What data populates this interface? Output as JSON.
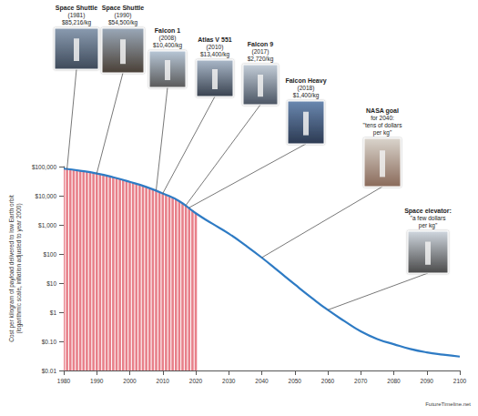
{
  "chart_data": {
    "type": "line",
    "ylabel": "Cost per kilogram of payload delivered to low Earth orbit (logarithmic scale, inflation adjusted to year 2000)",
    "source": "FutureTimeline.net",
    "log": "y",
    "grid": false,
    "xlim": [
      1980,
      2100
    ],
    "xticks": [
      1980,
      1990,
      2000,
      2010,
      2020,
      2030,
      2040,
      2050,
      2060,
      2070,
      2080,
      2090,
      2100
    ],
    "ylim": [
      0.01,
      100000
    ],
    "yticks": [
      {
        "value": 100000,
        "label": "$100,000"
      },
      {
        "value": 10000,
        "label": "$10,000"
      },
      {
        "value": 1000,
        "label": "$1,000"
      },
      {
        "value": 100,
        "label": "$100"
      },
      {
        "value": 10,
        "label": "$10"
      },
      {
        "value": 1,
        "label": "$1"
      },
      {
        "value": 0.1,
        "label": "$0.10"
      },
      {
        "value": 0.01,
        "label": "$0.01"
      }
    ],
    "series": [
      {
        "type": "bar",
        "color": "#e8808a",
        "x": [
          1980,
          1981,
          1982,
          1983,
          1984,
          1985,
          1986,
          1987,
          1988,
          1989,
          1990,
          1991,
          1992,
          1993,
          1994,
          1995,
          1996,
          1997,
          1998,
          1999,
          2000,
          2001,
          2002,
          2003,
          2004,
          2005,
          2006,
          2007,
          2008,
          2009,
          2010,
          2011,
          2012,
          2013,
          2014,
          2015,
          2016,
          2017,
          2018,
          2019,
          2020
        ],
        "values": [
          85000,
          82000,
          79000,
          76000,
          73000,
          70000,
          67000,
          65000,
          63000,
          61000,
          58000,
          55000,
          52000,
          49000,
          46000,
          43000,
          40000,
          37000,
          34500,
          32000,
          30000,
          28000,
          26000,
          24000,
          22000,
          20000,
          18500,
          17000,
          15500,
          13500,
          12000,
          10500,
          9500,
          8500,
          7500,
          6500,
          5500,
          4700,
          3900,
          3200,
          2500
        ]
      },
      {
        "type": "line",
        "color": "#2e7bc4",
        "x": [
          1980,
          1985,
          1990,
          1995,
          2000,
          2005,
          2010,
          2015,
          2020,
          2025,
          2030,
          2035,
          2040,
          2045,
          2050,
          2055,
          2060,
          2065,
          2070,
          2075,
          2080,
          2085,
          2090,
          2095,
          2100
        ],
        "values": [
          85000,
          72000,
          58000,
          43000,
          30000,
          20000,
          12000,
          6500,
          2500,
          1100,
          500,
          200,
          75,
          26,
          9,
          3.2,
          1.2,
          0.5,
          0.22,
          0.12,
          0.08,
          0.055,
          0.042,
          0.035,
          0.03
        ]
      }
    ],
    "annotations": [
      {
        "text": [
          "Space Shuttle",
          "(1981)",
          "$85,216/kg"
        ],
        "x": 1981,
        "y": 82000
      },
      {
        "text": [
          "Space Shuttle",
          "(1990)",
          "$54,500/kg"
        ],
        "x": 1990,
        "y": 58000
      },
      {
        "text": [
          "Falcon 1",
          "(2008)",
          "$10,400/kg"
        ],
        "x": 2008,
        "y": 15500
      },
      {
        "text": [
          "Atlas V 551",
          "(2010)",
          "$13,400/kg"
        ],
        "x": 2010,
        "y": 12000
      },
      {
        "text": [
          "Falcon 9",
          "(2017)",
          "$2,720/kg"
        ],
        "x": 2017,
        "y": 4700
      },
      {
        "text": [
          "Falcon Heavy",
          "(2018)",
          "$1,400/kg"
        ],
        "x": 2018,
        "y": 3900
      },
      {
        "text": [
          "NASA goal",
          "for 2040:",
          "\"tens of dollars",
          "per kg\""
        ],
        "x": 2040,
        "y": 75
      },
      {
        "text": [
          "Space elevator:",
          "\"a few dollars",
          "per kg\""
        ],
        "x": 2060,
        "y": 1.2
      }
    ]
  }
}
